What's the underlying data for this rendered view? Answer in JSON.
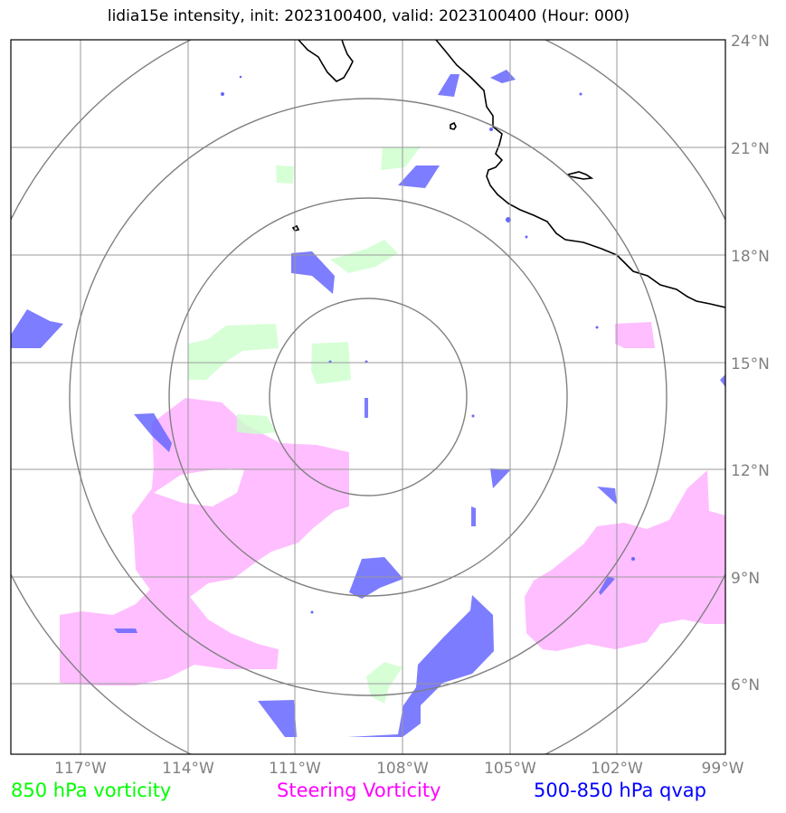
{
  "title": "lidia15e intensity, init: 2023100400, valid: 2023100400 (Hour: 000)",
  "map": {
    "lon_range": [
      -119.0,
      -99.0
    ],
    "lat_range": [
      4.0,
      24.0
    ],
    "storm_center": {
      "lon": -109.0,
      "lat": 14.2
    },
    "range_ring_degrees": [
      2.75,
      5.55,
      8.35,
      11.15
    ],
    "lon_ticks": [
      "117°W",
      "114°W",
      "111°W",
      "108°W",
      "105°W",
      "102°W",
      "99°W"
    ],
    "lat_ticks": [
      "24°N",
      "21°N",
      "18°N",
      "15°N",
      "12°N",
      "9°N",
      "6°N"
    ],
    "grid": true
  },
  "legend": [
    {
      "label": "850 hPa vorticity",
      "color": "#00ff00"
    },
    {
      "label": "Steering Vorticity",
      "color": "#ff00ff"
    },
    {
      "label": "500-850 hPa qvap",
      "color": "#0000ff"
    }
  ],
  "colors": {
    "vorticity_850": "#ccffcc",
    "steering_vorticity": "#ffb3ff",
    "qvap": "#6666ff",
    "grid": "#999999",
    "rings": "#808080",
    "coast": "#000000"
  }
}
